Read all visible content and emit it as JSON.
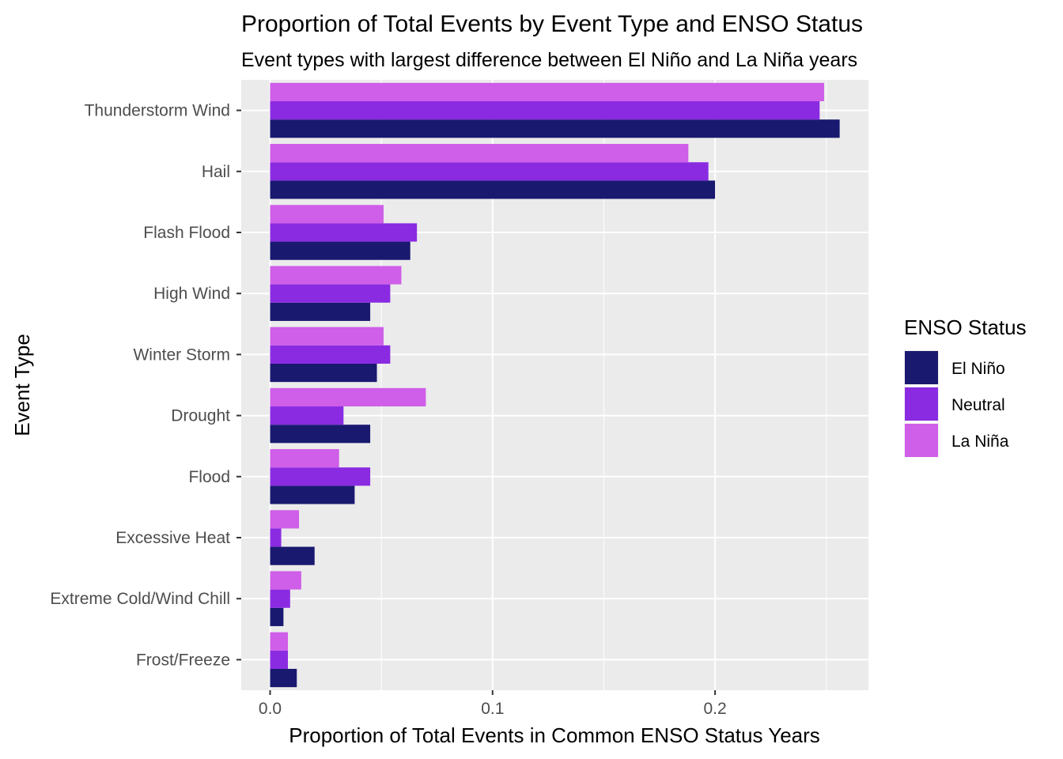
{
  "chart_data": {
    "type": "bar",
    "orientation": "horizontal",
    "title": "Proportion of Total Events by Event Type and ENSO Status",
    "subtitle": "Event types with largest difference between El Niño and La Niña years",
    "xlabel": "Proportion of Total Events in Common ENSO Status Years",
    "ylabel": "Event Type",
    "xlim": [
      0,
      0.27
    ],
    "x_ticks": [
      0.0,
      0.1,
      0.2
    ],
    "x_tick_labels": [
      "0.0",
      "0.1",
      "0.2"
    ],
    "grid": true,
    "legend_title": "ENSO Status",
    "legend_position": "right",
    "categories": [
      "Thunderstorm Wind",
      "Hail",
      "Flash Flood",
      "High Wind",
      "Winter Storm",
      "Drought",
      "Flood",
      "Excessive Heat",
      "Extreme Cold/Wind Chill",
      "Frost/Freeze"
    ],
    "series": [
      {
        "name": "El Niño",
        "color": "#191970",
        "values": [
          0.256,
          0.2,
          0.063,
          0.045,
          0.048,
          0.045,
          0.038,
          0.02,
          0.006,
          0.012
        ]
      },
      {
        "name": "Neutral",
        "color": "#8A2BE2",
        "values": [
          0.247,
          0.197,
          0.066,
          0.054,
          0.054,
          0.033,
          0.045,
          0.005,
          0.009,
          0.008
        ]
      },
      {
        "name": "La Niña",
        "color": "#CF5EE8",
        "values": [
          0.249,
          0.188,
          0.051,
          0.059,
          0.051,
          0.07,
          0.031,
          0.013,
          0.014,
          0.008
        ]
      }
    ]
  }
}
